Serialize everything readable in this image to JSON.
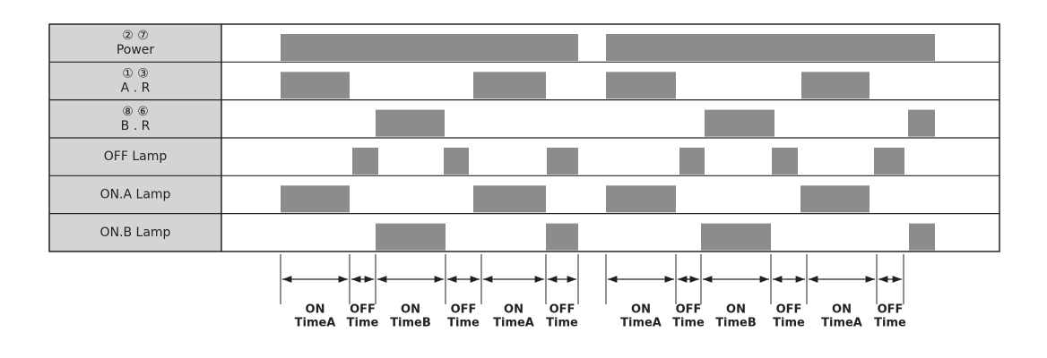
{
  "rows": [
    {
      "lines": [
        "② ⑦",
        "Power"
      ]
    },
    {
      "lines": [
        "① ③",
        "A . R"
      ]
    },
    {
      "lines": [
        "⑧ ⑥",
        "B . R"
      ]
    },
    {
      "lines": [
        "OFF Lamp"
      ]
    },
    {
      "lines": [
        "ON.A Lamp"
      ]
    },
    {
      "lines": [
        "ON.B Lamp"
      ]
    }
  ],
  "intervals": [
    {
      "lines": [
        "ON",
        "TimeA"
      ]
    },
    {
      "lines": [
        "OFF",
        "Time"
      ]
    },
    {
      "lines": [
        "ON",
        "TimeB"
      ]
    },
    {
      "lines": [
        "OFF",
        "Time"
      ]
    },
    {
      "lines": [
        "ON",
        "TimeA"
      ]
    },
    {
      "lines": [
        "OFF",
        "Time"
      ]
    },
    {
      "lines": [
        "ON",
        "TimeA"
      ]
    },
    {
      "lines": [
        "OFF",
        "Time"
      ]
    },
    {
      "lines": [
        "ON",
        "TimeB"
      ]
    },
    {
      "lines": [
        "OFF",
        "Time"
      ]
    },
    {
      "lines": [
        "ON",
        "TimeA"
      ]
    },
    {
      "lines": [
        "OFF",
        "Time"
      ]
    }
  ]
}
